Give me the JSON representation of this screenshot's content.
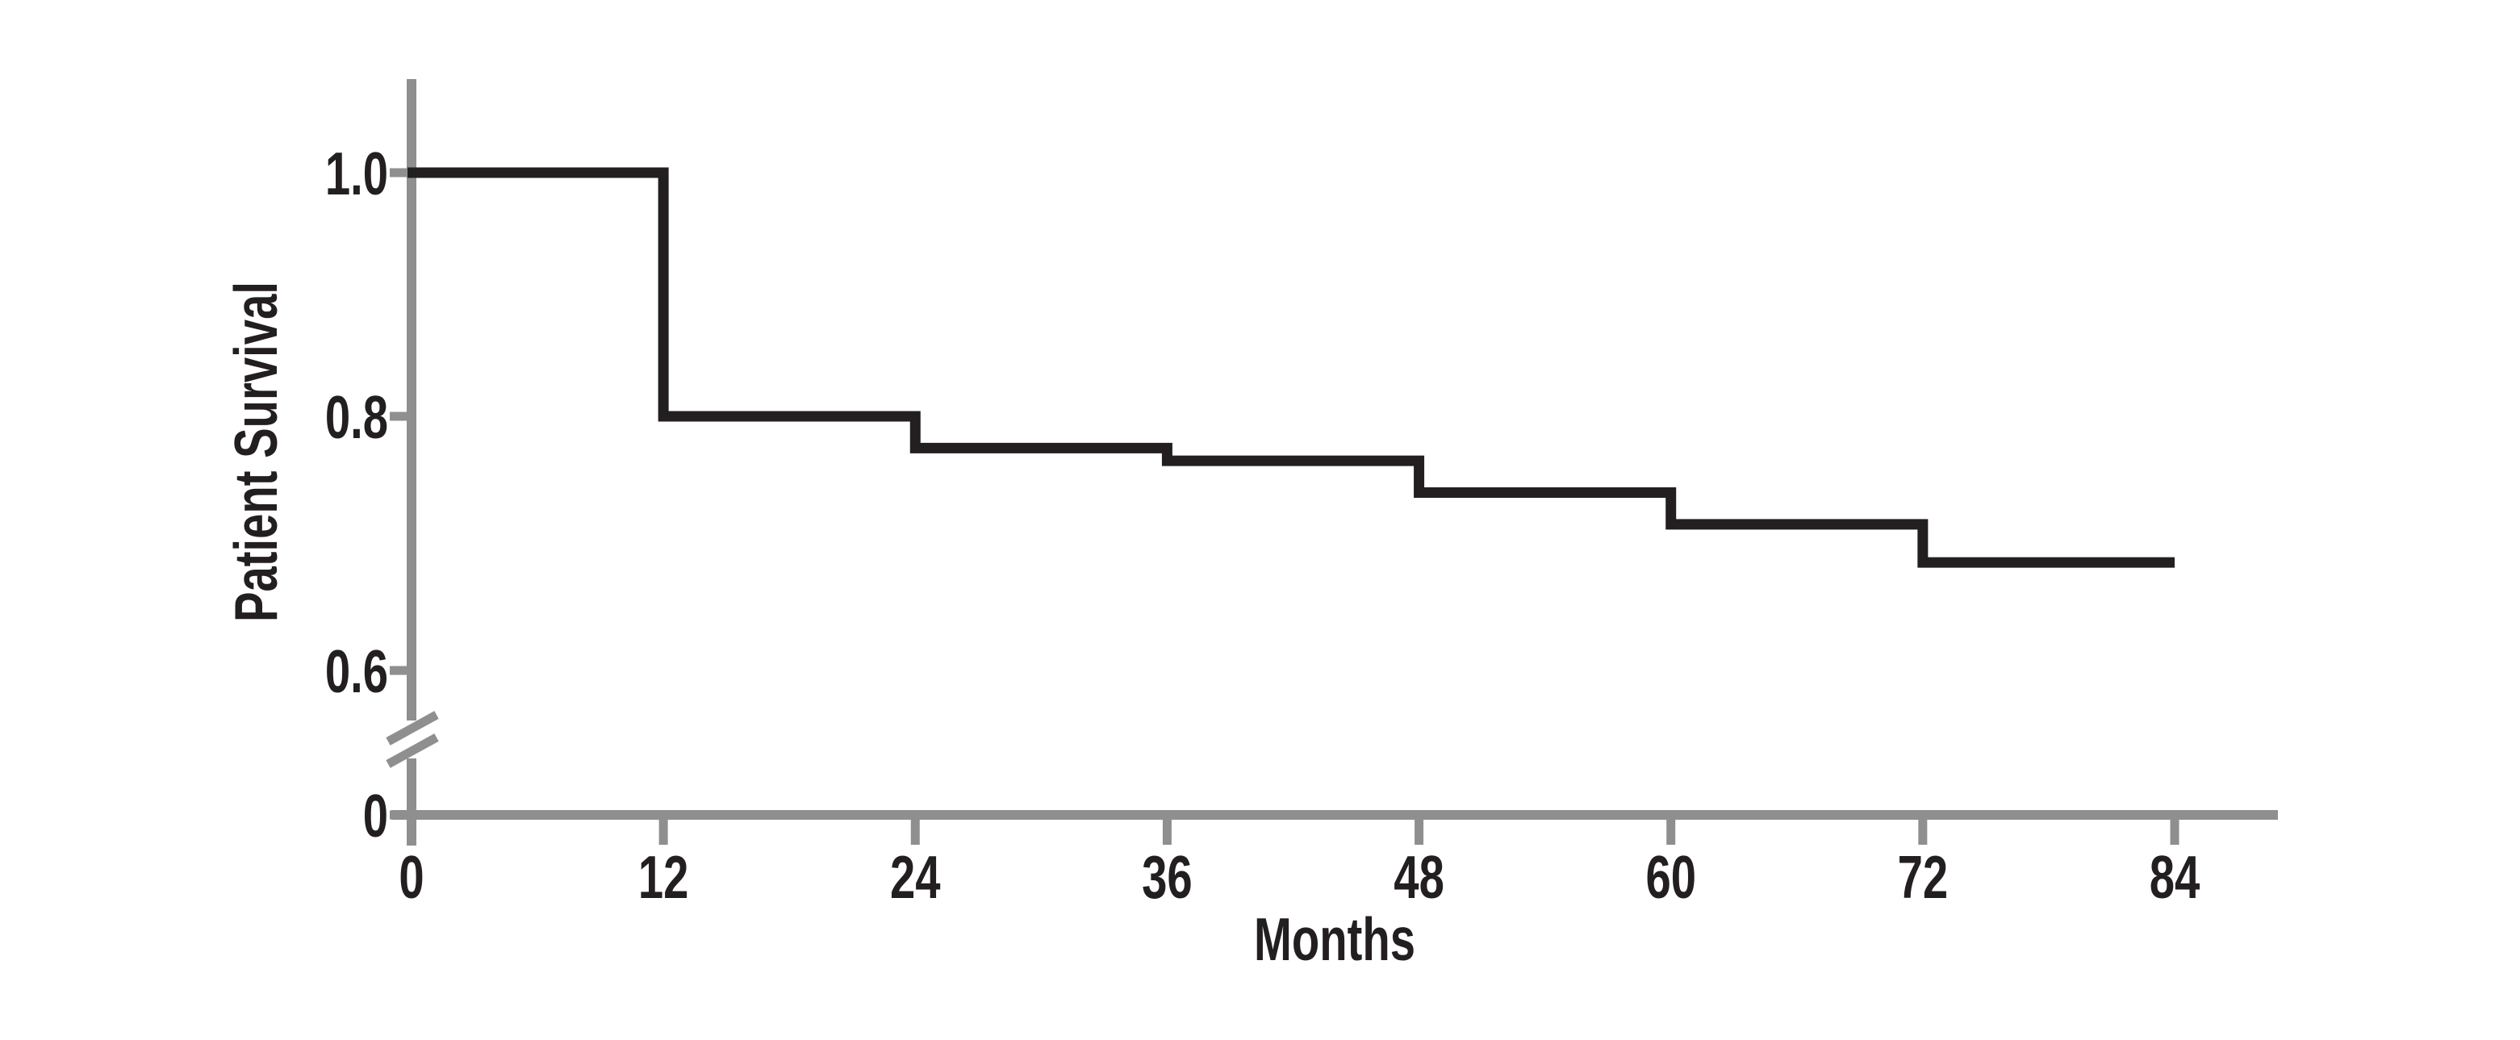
{
  "figure": {
    "background_color": "#ffffff"
  },
  "chart_data": {
    "type": "line",
    "subtype": "kaplan-meier-survival-step-curve",
    "title": "",
    "xlabel": "Months",
    "ylabel": "Patient Survival",
    "x_ticks": [
      0,
      12,
      24,
      36,
      48,
      60,
      72,
      84
    ],
    "x_tick_labels": [
      "0",
      "12",
      "24",
      "36",
      "48",
      "60",
      "72",
      "84"
    ],
    "y_ticks": [
      {
        "label": "1.0",
        "value": 1.0
      },
      {
        "label": "0.8",
        "value": 0.8
      },
      {
        "label": "0.6",
        "value": 0.6
      },
      {
        "label": "0",
        "value": 0.0
      }
    ],
    "xlim": [
      0,
      84
    ],
    "ylim": [
      0,
      1.05
    ],
    "y_axis_break": {
      "between_values": [
        0,
        0.6
      ],
      "symbol": "double-slash"
    },
    "grid": false,
    "legend": false,
    "series": [
      {
        "name": "Patient Survival",
        "step_points": [
          {
            "month": 0,
            "survival": 1.0
          },
          {
            "month": 12,
            "survival": 0.8
          },
          {
            "month": 24,
            "survival": 0.775
          },
          {
            "month": 36,
            "survival": 0.765
          },
          {
            "month": 48,
            "survival": 0.74
          },
          {
            "month": 60,
            "survival": 0.715
          },
          {
            "month": 72,
            "survival": 0.685
          }
        ],
        "end_month": 84
      }
    ],
    "colors": {
      "axis": "#8f8f8f",
      "curve": "#231f20",
      "text": "#231f20"
    }
  }
}
